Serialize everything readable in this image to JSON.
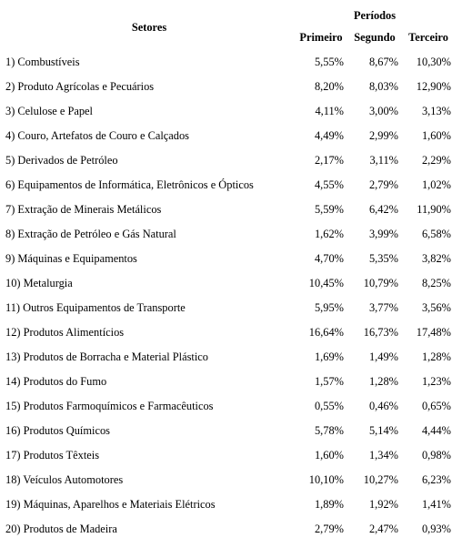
{
  "table": {
    "header": {
      "setores": "Setores",
      "periodos": "Períodos",
      "primeiro": "Primeiro",
      "segundo": "Segundo",
      "terceiro": "Terceiro"
    },
    "rows": [
      {
        "name": "1) Combustíveis",
        "primeiro": "5,55%",
        "segundo": "8,67%",
        "terceiro": "10,30%"
      },
      {
        "name": "2) Produto Agrícolas e Pecuários",
        "primeiro": "8,20%",
        "segundo": "8,03%",
        "terceiro": "12,90%"
      },
      {
        "name": "3) Celulose e Papel",
        "primeiro": "4,11%",
        "segundo": "3,00%",
        "terceiro": "3,13%"
      },
      {
        "name": "4) Couro, Artefatos de Couro e Calçados",
        "primeiro": "4,49%",
        "segundo": "2,99%",
        "terceiro": "1,60%"
      },
      {
        "name": "5) Derivados de Petróleo",
        "primeiro": "2,17%",
        "segundo": "3,11%",
        "terceiro": "2,29%"
      },
      {
        "name": "6) Equipamentos de Informática, Eletrônicos e Ópticos",
        "primeiro": "4,55%",
        "segundo": "2,79%",
        "terceiro": "1,02%"
      },
      {
        "name": "7) Extração de Minerais Metálicos",
        "primeiro": "5,59%",
        "segundo": "6,42%",
        "terceiro": "11,90%"
      },
      {
        "name": "8) Extração de Petróleo e Gás Natural",
        "primeiro": "1,62%",
        "segundo": "3,99%",
        "terceiro": "6,58%"
      },
      {
        "name": "9) Máquinas e Equipamentos",
        "primeiro": "4,70%",
        "segundo": "5,35%",
        "terceiro": "3,82%"
      },
      {
        "name": "10) Metalurgia",
        "primeiro": "10,45%",
        "segundo": "10,79%",
        "terceiro": "8,25%"
      },
      {
        "name": "11) Outros Equipamentos de Transporte",
        "primeiro": "5,95%",
        "segundo": "3,77%",
        "terceiro": "3,56%"
      },
      {
        "name": "12) Produtos Alimentícios",
        "primeiro": "16,64%",
        "segundo": "16,73%",
        "terceiro": "17,48%"
      },
      {
        "name": "13) Produtos de Borracha e Material Plástico",
        "primeiro": "1,69%",
        "segundo": "1,49%",
        "terceiro": "1,28%"
      },
      {
        "name": "14) Produtos do Fumo",
        "primeiro": "1,57%",
        "segundo": "1,28%",
        "terceiro": "1,23%"
      },
      {
        "name": "15) Produtos Farmoquímicos e Farmacêuticos",
        "primeiro": "0,55%",
        "segundo": "0,46%",
        "terceiro": "0,65%"
      },
      {
        "name": "16) Produtos Químicos",
        "primeiro": "5,78%",
        "segundo": "5,14%",
        "terceiro": "4,44%"
      },
      {
        "name": "17) Produtos Têxteis",
        "primeiro": "1,60%",
        "segundo": "1,34%",
        "terceiro": "0,98%"
      },
      {
        "name": "18) Veículos Automotores",
        "primeiro": "10,10%",
        "segundo": "10,27%",
        "terceiro": "6,23%"
      },
      {
        "name": "19) Máquinas, Aparelhos e Materiais Elétricos",
        "primeiro": "1,89%",
        "segundo": "1,92%",
        "terceiro": "1,41%"
      },
      {
        "name": "20) Produtos de Madeira",
        "primeiro": "2,79%",
        "segundo": "2,47%",
        "terceiro": "0,93%"
      }
    ]
  }
}
